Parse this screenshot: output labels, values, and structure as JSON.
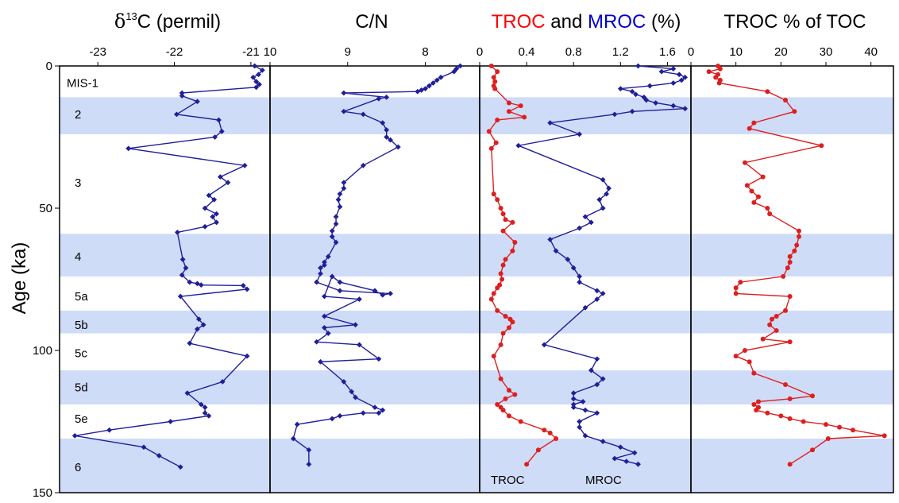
{
  "figure": {
    "y_axis": {
      "label": "Age (ka)",
      "range": [
        0,
        150
      ],
      "ticks": [
        0,
        50,
        100,
        150
      ]
    },
    "bands": [
      {
        "range": [
          11,
          24
        ],
        "shaded": true
      },
      {
        "range": [
          59,
          74
        ],
        "shaded": true
      },
      {
        "range": [
          86,
          94
        ],
        "shaded": true
      },
      {
        "range": [
          107,
          119
        ],
        "shaded": true
      },
      {
        "range": [
          131,
          150
        ],
        "shaded": true
      }
    ],
    "stage_labels": [
      {
        "text": "MIS-1",
        "age": 6
      },
      {
        "text": "2",
        "age": 17
      },
      {
        "text": "3",
        "age": 41
      },
      {
        "text": "4",
        "age": 67
      },
      {
        "text": "5a",
        "age": 81
      },
      {
        "text": "5b",
        "age": 91
      },
      {
        "text": "5c",
        "age": 101
      },
      {
        "text": "5d",
        "age": 113
      },
      {
        "text": "5e",
        "age": 124
      },
      {
        "text": "6",
        "age": 141
      }
    ],
    "colors": {
      "blue_series": "#1f1f99",
      "red_series": "#dd1f1f",
      "band": "#cfdcf7",
      "troc_word": "#ff0000",
      "mroc_word": "#0000cc"
    }
  },
  "chart_data": [
    {
      "type": "line",
      "title_parts": [
        "δ",
        "13",
        "C (permil)"
      ],
      "x_tick_labels": [
        "-23",
        "-22",
        "-21"
      ],
      "x_ticks": [
        -23,
        -22,
        -21
      ],
      "xlim": [
        -23.5,
        -20.75
      ],
      "series": [
        {
          "color": "#1f1f99",
          "x": [
            -20.95,
            -20.85,
            -20.9,
            -20.97,
            -20.93,
            -20.89,
            -20.93,
            -21.9,
            -21.9,
            -21.7,
            -21.97,
            -21.42,
            -21.38,
            -21.47,
            -22.6,
            -21.08,
            -21.4,
            -21.3,
            -21.55,
            -21.48,
            -21.6,
            -21.45,
            -21.5,
            -21.45,
            -21.6,
            -21.96,
            -21.89,
            -21.85,
            -21.9,
            -21.8,
            -21.7,
            -21.65,
            -21.1,
            -21.05,
            -21.92,
            -21.68,
            -21.62,
            -21.7,
            -21.8,
            -21.05,
            -21.37,
            -21.83,
            -21.65,
            -21.6,
            -21.6,
            -21.55,
            -22.05,
            -22.85,
            -23.3,
            -22.4,
            -22.2,
            -21.92
          ],
          "y": [
            0,
            1.5,
            3,
            4,
            5.5,
            6.5,
            7.5,
            9.5,
            10.5,
            12.5,
            17,
            19,
            23,
            25,
            29,
            35,
            39,
            41,
            45.5,
            47,
            50,
            52,
            53,
            55,
            56.5,
            58.5,
            68,
            71,
            73.5,
            76,
            76.5,
            77,
            77.2,
            78.5,
            81,
            89,
            91,
            92.5,
            97.5,
            102,
            111,
            115,
            119,
            120,
            122,
            123,
            125,
            128,
            130,
            134,
            137,
            141
          ]
        }
      ]
    },
    {
      "type": "line",
      "title": "C/N",
      "x_tick_labels": [
        "10",
        "9",
        "8"
      ],
      "x_ticks": [
        10,
        9,
        8
      ],
      "xlim": [
        10,
        7.3
      ],
      "series": [
        {
          "color": "#1f1f99",
          "x": [
            7.55,
            7.6,
            7.63,
            7.8,
            7.85,
            7.9,
            7.95,
            8,
            8.05,
            8.1,
            9.05,
            8.5,
            8.6,
            9.05,
            8.8,
            8.55,
            8.5,
            8.5,
            8.45,
            8.35,
            8.8,
            9.05,
            9.05,
            9.1,
            9.12,
            9.1,
            9.15,
            9.15,
            9.2,
            9.2,
            9.15,
            9.25,
            9.3,
            9.3,
            9.35,
            9.35,
            9.4,
            9.1,
            8.45,
            8.55,
            8.65,
            9.1,
            9.2,
            9.3,
            8.85,
            9.3,
            8.9,
            9.3,
            9.25,
            9.4,
            8.85,
            8.6,
            9.35,
            9.05,
            8.95,
            8.9,
            8.65,
            8.55,
            8.6,
            8.8,
            9.1,
            9.2,
            9.65,
            9.7,
            9.5,
            9.5
          ],
          "y": [
            0,
            1,
            2,
            4,
            5,
            6,
            7,
            8,
            8.5,
            9,
            9.5,
            11,
            11.5,
            16,
            17,
            20,
            22.5,
            25,
            26,
            28.5,
            35,
            41,
            43,
            45,
            47,
            49.5,
            53,
            55.5,
            58,
            60,
            62,
            67,
            69,
            70,
            71,
            73,
            76,
            79,
            80,
            80.5,
            79,
            76,
            74,
            81,
            82,
            88,
            91,
            92,
            94,
            97,
            98,
            103,
            104,
            111,
            114.5,
            116.5,
            120,
            121,
            122,
            122,
            123,
            124,
            126,
            131,
            135,
            140
          ]
        }
      ]
    },
    {
      "type": "line",
      "title_parts": [
        "TROC",
        " and ",
        "MROC",
        " (%)"
      ],
      "x_tick_labels": [
        "0",
        "0.4",
        "0.8",
        "1.2",
        "1.6"
      ],
      "x_ticks": [
        0,
        0.4,
        0.8,
        1.2,
        1.6
      ],
      "xlim": [
        0,
        1.8
      ],
      "series_labels": [
        "TROC",
        "MROC"
      ],
      "series": [
        {
          "name": "TROC",
          "color": "#dd1f1f",
          "x": [
            0.1,
            0.15,
            0.12,
            0.13,
            0.12,
            0.13,
            0.25,
            0.35,
            0.25,
            0.38,
            0.15,
            0.08,
            0.14,
            0.1,
            0.12,
            0.15,
            0.18,
            0.2,
            0.22,
            0.28,
            0.2,
            0.3,
            0.28,
            0.22,
            0.2,
            0.18,
            0.19,
            0.17,
            0.15,
            0.12,
            0.1,
            0.15,
            0.22,
            0.26,
            0.28,
            0.25,
            0.2,
            0.18,
            0.12,
            0.18,
            0.25,
            0.3,
            0.22,
            0.15,
            0.18,
            0.2,
            0.25,
            0.35,
            0.55,
            0.6,
            0.65,
            0.5,
            0.4
          ],
          "y": [
            0,
            2,
            4,
            5.5,
            7,
            8,
            13,
            14,
            16,
            18,
            19,
            23,
            27,
            29,
            45,
            47,
            50,
            52,
            54,
            55,
            58,
            62,
            65,
            68,
            70,
            73,
            75,
            77,
            78,
            80,
            82,
            86,
            88,
            89,
            90,
            92,
            94,
            98,
            102,
            110,
            114,
            115.5,
            117,
            119,
            120,
            121,
            123,
            125,
            128,
            129,
            131,
            135,
            140
          ]
        },
        {
          "name": "MROC",
          "color": "#1f1f99",
          "x": [
            1.35,
            1.65,
            1.55,
            1.7,
            1.75,
            1.72,
            1.65,
            1.45,
            1.2,
            1.3,
            1.33,
            1.4,
            1.42,
            1.5,
            1.65,
            1.75,
            1.3,
            1.15,
            0.6,
            0.85,
            0.33,
            1.05,
            1.1,
            1.08,
            1.02,
            1.05,
            0.9,
            0.95,
            0.85,
            0.6,
            0.65,
            0.75,
            0.8,
            0.85,
            0.85,
            1,
            1.05,
            1,
            0.9,
            0.55,
            1.0,
            0.95,
            1.05,
            1.0,
            0.8,
            0.8,
            0.88,
            0.8,
            0.8,
            0.9,
            1.0,
            0.85,
            0.85,
            0.9,
            1.05,
            1.2,
            1.32,
            1.15,
            1.25,
            1.35
          ],
          "y": [
            0,
            1,
            2,
            3,
            4,
            5,
            6,
            7,
            8,
            9,
            10,
            11,
            12,
            13,
            14,
            15,
            16,
            17,
            20,
            24,
            28,
            40,
            43,
            45,
            47,
            50,
            53,
            55,
            57,
            61,
            65,
            68,
            71,
            74,
            76,
            79,
            80,
            82,
            85,
            98,
            103,
            107,
            110,
            112,
            115,
            117,
            118,
            119,
            120,
            121,
            122,
            125,
            127,
            130,
            132,
            134,
            136,
            138,
            139,
            140
          ]
        }
      ]
    },
    {
      "type": "line",
      "title": "TROC % of TOC",
      "x_tick_labels": [
        "0",
        "10",
        "20",
        "30",
        "40"
      ],
      "x_ticks": [
        0,
        10,
        20,
        30,
        40
      ],
      "xlim": [
        0,
        45
      ],
      "series": [
        {
          "color": "#dd1f1f",
          "x": [
            6,
            6.5,
            4,
            6,
            5.5,
            6.5,
            6.3,
            17,
            21,
            23,
            14,
            13,
            29,
            12,
            16,
            12.5,
            13.5,
            15,
            14,
            17,
            17.5,
            24,
            24,
            23.5,
            23,
            22,
            22,
            21.5,
            20.5,
            11,
            10,
            10,
            22,
            21,
            19,
            18,
            17.5,
            19,
            16,
            22,
            12,
            10,
            13,
            14,
            21,
            27,
            22,
            15,
            14,
            15,
            14.5,
            17,
            20,
            22,
            25,
            30,
            33,
            36,
            43,
            30.5,
            27,
            22
          ],
          "y": [
            0,
            1,
            2,
            3,
            4,
            5,
            6,
            9,
            12,
            16,
            20,
            22,
            28,
            34,
            39,
            42,
            44,
            46,
            48,
            50,
            52,
            58,
            60,
            63,
            65,
            67,
            69,
            71,
            74,
            76,
            78,
            80,
            81,
            86,
            88,
            89,
            91,
            93,
            96,
            97,
            100,
            102,
            104,
            108,
            112,
            116,
            117,
            118,
            119,
            120,
            121,
            122,
            123,
            124,
            125,
            126,
            127,
            128,
            130,
            131,
            135,
            140
          ]
        }
      ]
    }
  ]
}
